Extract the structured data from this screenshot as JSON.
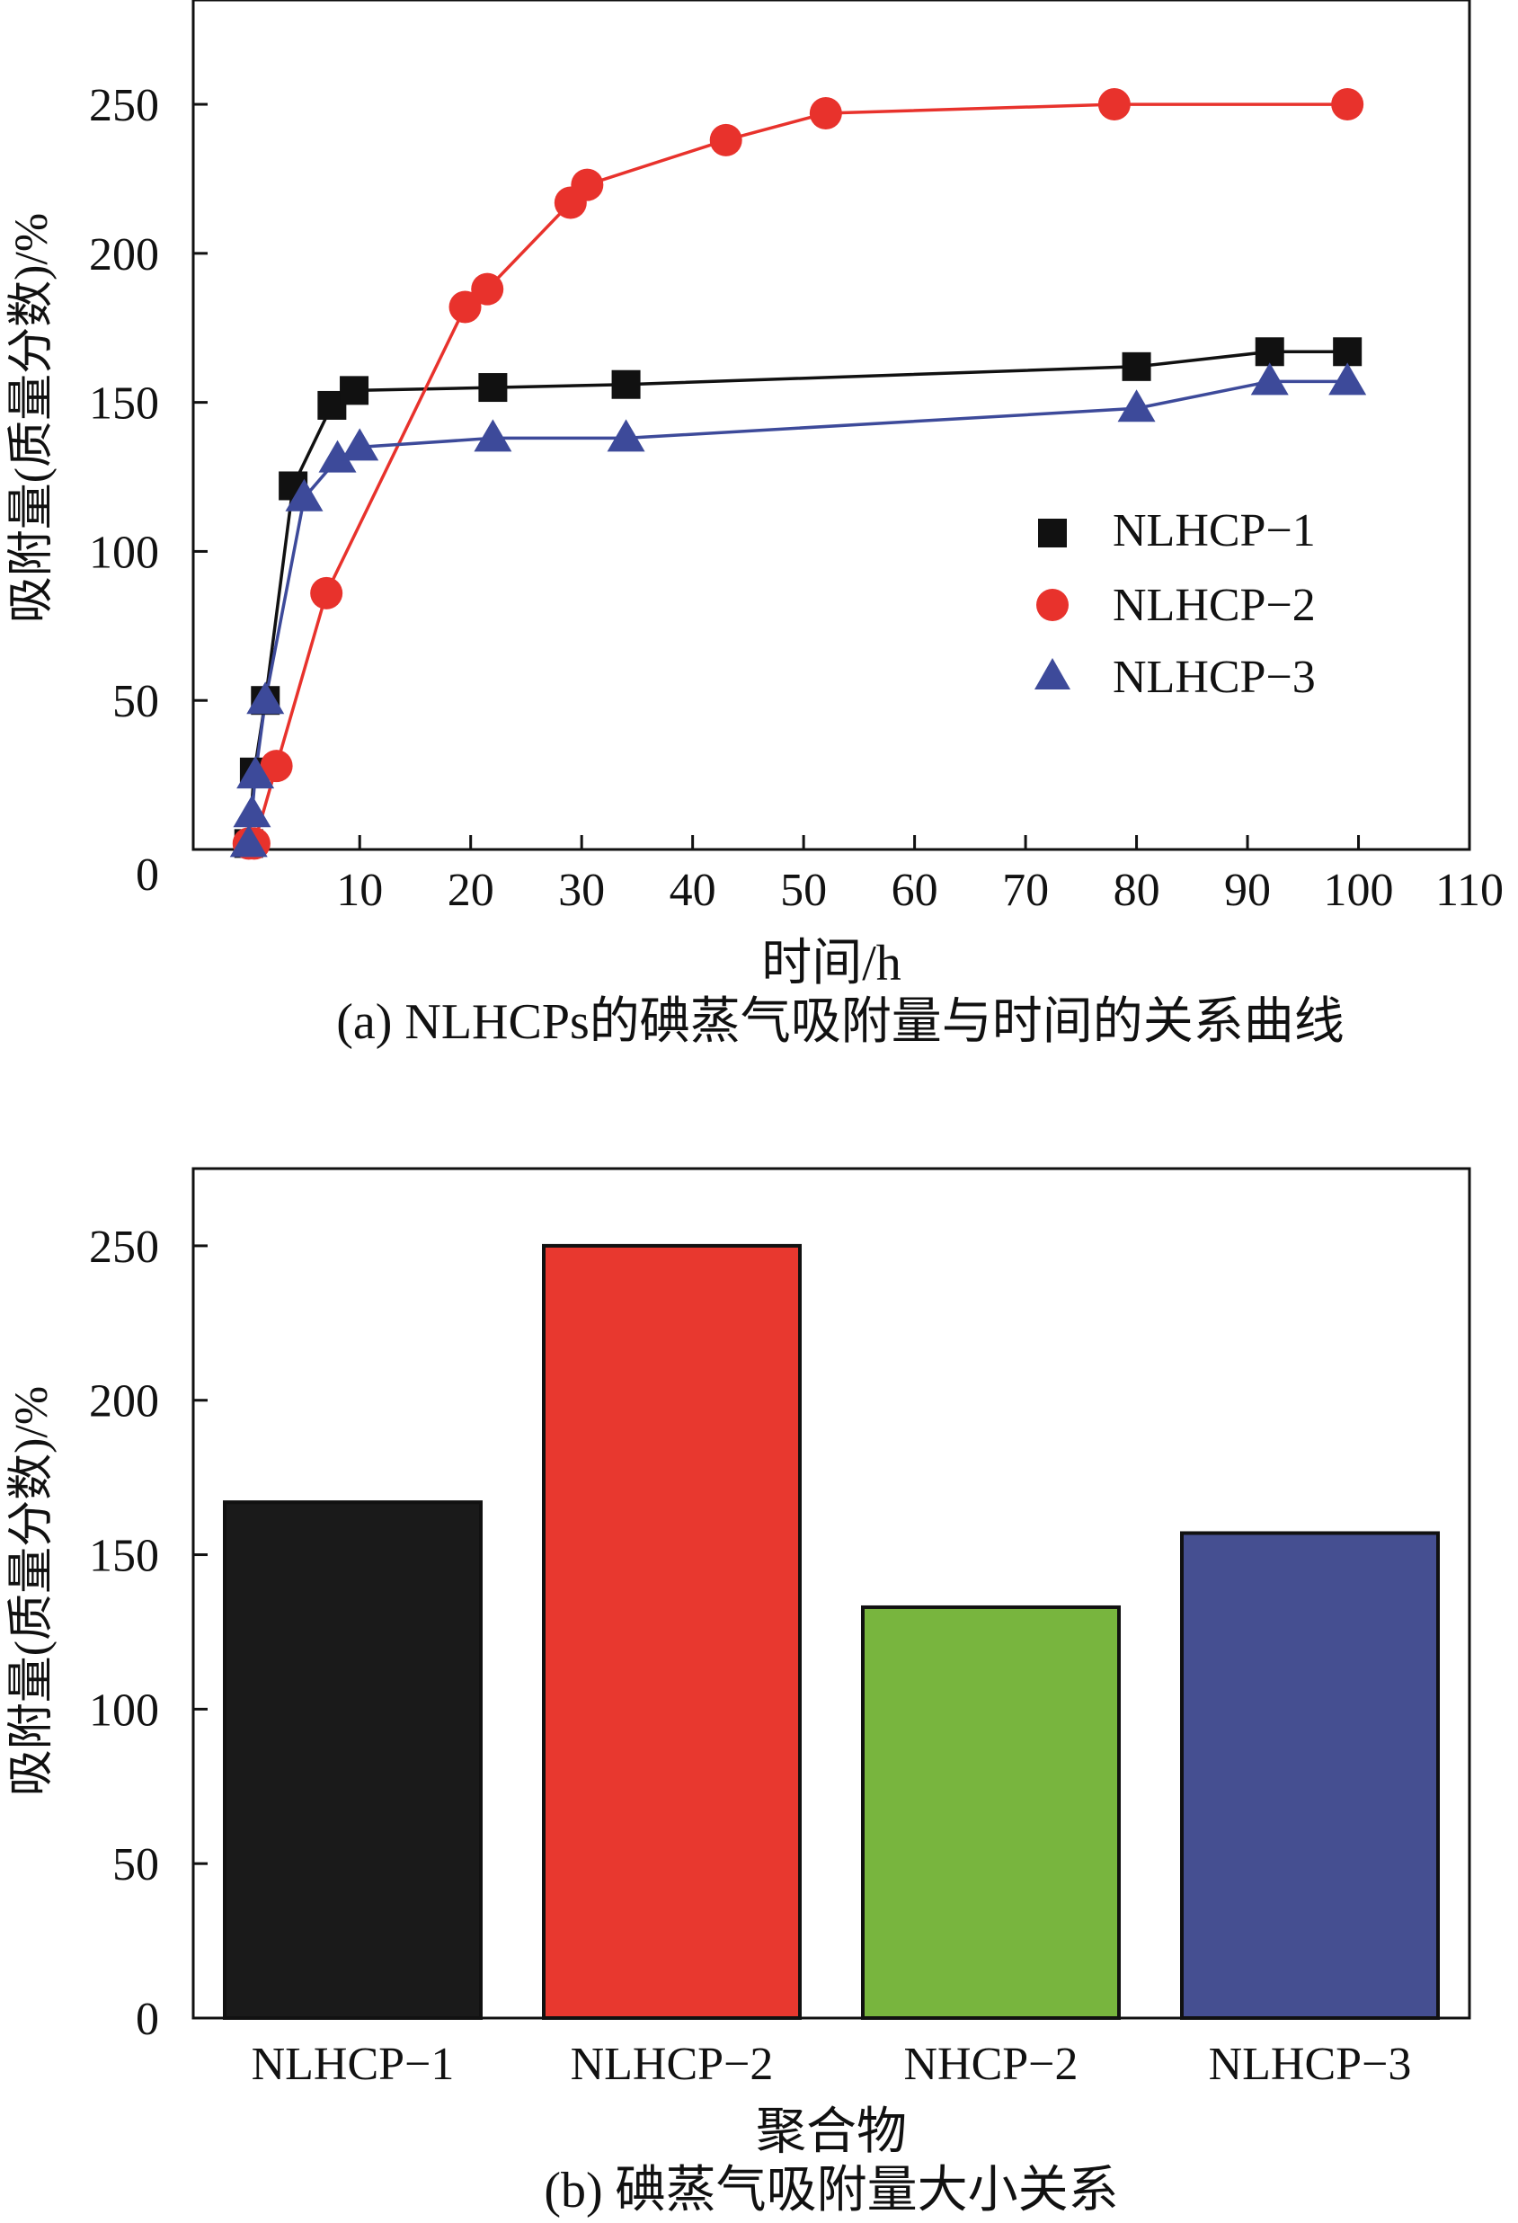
{
  "chart_data": [
    {
      "type": "line",
      "caption": "(a) NLHCPs的碘蒸气吸附量与时间的关系曲线",
      "xlabel": "时间/h",
      "ylabel": "吸附量(质量分数)/%",
      "xlim": [
        -5,
        110
      ],
      "ylim": [
        0,
        285
      ],
      "xticks": [
        10,
        20,
        30,
        40,
        50,
        60,
        70,
        80,
        90,
        100,
        110
      ],
      "yticks": [
        0,
        50,
        100,
        150,
        200,
        250
      ],
      "legend_position": "right",
      "series": [
        {
          "name": "NLHCP−1",
          "marker": "square",
          "color": "#111111",
          "x": [
            0,
            0.5,
            1.5,
            4,
            7.5,
            9.5,
            22,
            34,
            80,
            92,
            99
          ],
          "y": [
            2,
            26,
            50,
            122,
            149,
            154,
            155,
            156,
            162,
            167,
            167
          ]
        },
        {
          "name": "NLHCP−2",
          "marker": "circle",
          "color": "#e8322c",
          "x": [
            0,
            0.5,
            2.5,
            7,
            19.5,
            21.5,
            29,
            30.5,
            43,
            52,
            78,
            99
          ],
          "y": [
            2,
            2,
            28,
            86,
            182,
            188,
            217,
            223,
            238,
            247,
            250,
            250
          ]
        },
        {
          "name": "NLHCP−3",
          "marker": "triangle",
          "color": "#3d4a9a",
          "x": [
            0,
            0.3,
            0.6,
            1.5,
            5,
            8,
            10,
            22,
            34,
            80,
            92,
            99
          ],
          "y": [
            2,
            12,
            25,
            50,
            118,
            131,
            135,
            138,
            138,
            148,
            157,
            157
          ]
        }
      ]
    },
    {
      "type": "bar",
      "caption": "(b) 碘蒸气吸附量大小关系",
      "xlabel": "聚合物",
      "ylabel": "吸附量(质量分数)/%",
      "ylim": [
        0,
        275
      ],
      "yticks": [
        0,
        50,
        100,
        150,
        200,
        250
      ],
      "categories": [
        "NLHCP−1",
        "NLHCP−2",
        "NHCP−2",
        "NLHCP−3"
      ],
      "values": [
        167,
        250,
        133,
        157
      ],
      "colors": [
        "#1a1a1a",
        "#e8382f",
        "#78b53e",
        "#454f91"
      ]
    }
  ]
}
